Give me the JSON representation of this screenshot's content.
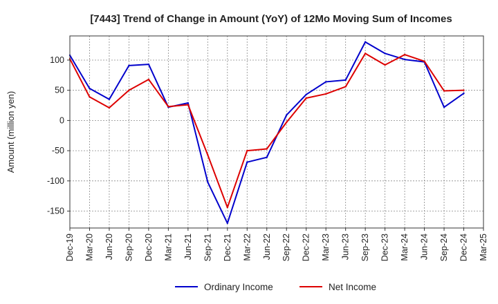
{
  "chart_data": {
    "type": "line",
    "title": "[7443]  Trend of Change in Amount (YoY) of 12Mo Moving Sum of Incomes",
    "xlabel": "",
    "ylabel": "Amount (million yen)",
    "ylim": [
      -178,
      140
    ],
    "yticks": [
      100,
      50,
      0,
      -50,
      -100,
      -150
    ],
    "grid": true,
    "legend_position": "bottom",
    "x": [
      "Dec-19",
      "Mar-20",
      "Jun-20",
      "Sep-20",
      "Dec-20",
      "Mar-21",
      "Jun-21",
      "Sep-21",
      "Dec-21",
      "Mar-22",
      "Jun-22",
      "Sep-22",
      "Dec-22",
      "Mar-23",
      "Jun-23",
      "Sep-23",
      "Dec-23",
      "Mar-24",
      "Jun-24",
      "Sep-24",
      "Dec-24",
      "Mar-25"
    ],
    "series": [
      {
        "name": "Ordinary Income",
        "color": "#0000cc",
        "values": [
          108,
          53,
          35,
          91,
          93,
          22,
          29,
          -102,
          -170,
          -69,
          -61,
          9,
          43,
          64,
          67,
          130,
          111,
          101,
          97,
          22,
          45,
          null
        ]
      },
      {
        "name": "Net Income",
        "color": "#dd0000",
        "values": [
          102,
          39,
          21,
          50,
          68,
          23,
          26,
          -57,
          -144,
          -50,
          -47,
          -3,
          37,
          44,
          56,
          111,
          92,
          109,
          98,
          49,
          50,
          null
        ]
      }
    ]
  }
}
